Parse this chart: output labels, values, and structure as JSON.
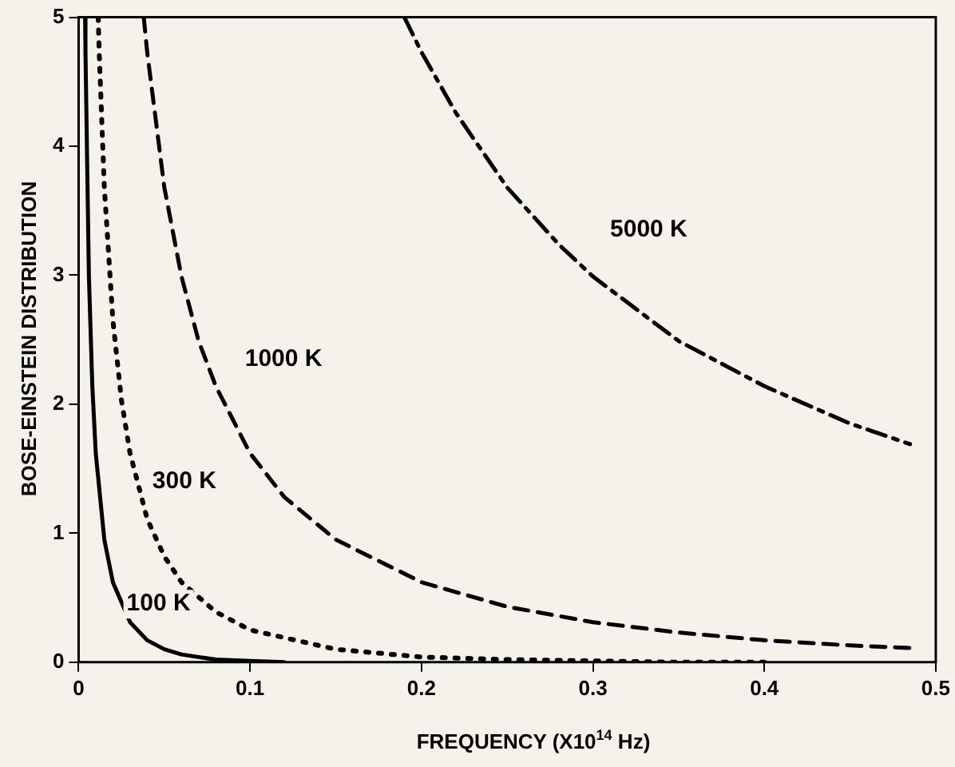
{
  "chart_data": {
    "type": "line",
    "xlabel": "FREQUENCY (X10$^{14}$ Hz)",
    "ylabel": "BOSE-EINSTEIN DISTRIBUTION",
    "xlim": [
      0,
      0.5
    ],
    "xticks": [
      0,
      0.1,
      0.2,
      0.3,
      0.4,
      0.5
    ],
    "ylim": [
      0,
      5
    ],
    "yticks": [
      0,
      1,
      2,
      3,
      4,
      5
    ],
    "grid": false,
    "legend": false,
    "marker": "none",
    "series": [
      {
        "name": "100 K",
        "color": "#000000",
        "line_style": "solid",
        "x": [
          0.0038,
          0.004,
          0.006,
          0.008,
          0.01,
          0.015,
          0.02,
          0.03,
          0.04,
          0.05,
          0.06,
          0.08,
          0.1,
          0.12
        ],
        "values": [
          5,
          4.73,
          2.99,
          2.14,
          1.62,
          0.95,
          0.62,
          0.31,
          0.17,
          0.1,
          0.06,
          0.02,
          0.01,
          0
        ]
      },
      {
        "name": "300 K",
        "color": "#000000",
        "line_style": "dotted",
        "x": [
          0.0114,
          0.012,
          0.015,
          0.02,
          0.025,
          0.03,
          0.04,
          0.05,
          0.06,
          0.08,
          0.1,
          0.15,
          0.2,
          0.25,
          0.3,
          0.35,
          0.4
        ],
        "values": [
          5,
          4.73,
          3.68,
          2.65,
          2.03,
          1.62,
          1.11,
          0.82,
          0.62,
          0.39,
          0.25,
          0.1,
          0.04,
          0.02,
          0.01,
          0,
          0
        ]
      },
      {
        "name": "1000 K",
        "color": "#000000",
        "line_style": "dashed",
        "x": [
          0.038,
          0.04,
          0.05,
          0.06,
          0.07,
          0.08,
          0.1,
          0.12,
          0.15,
          0.2,
          0.25,
          0.3,
          0.35,
          0.4,
          0.45,
          0.485
        ],
        "values": [
          5,
          4.73,
          3.68,
          2.99,
          2.49,
          2.14,
          1.62,
          1.28,
          0.95,
          0.62,
          0.43,
          0.31,
          0.23,
          0.17,
          0.13,
          0.11
        ]
      },
      {
        "name": "5000 K",
        "color": "#000000",
        "line_style": "dashdot",
        "x": [
          0.19,
          0.2,
          0.22,
          0.25,
          0.28,
          0.3,
          0.35,
          0.4,
          0.45,
          0.485
        ],
        "values": [
          5,
          4.73,
          4.26,
          3.68,
          3.24,
          2.99,
          2.49,
          2.14,
          1.85,
          1.69
        ]
      }
    ]
  }
}
